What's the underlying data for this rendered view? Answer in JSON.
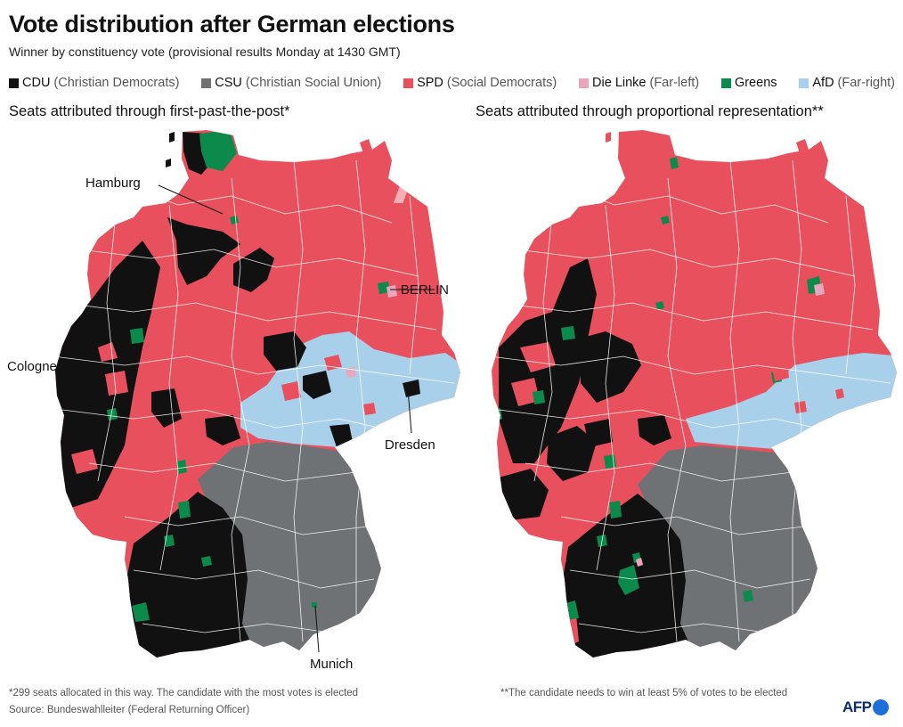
{
  "title": "Vote distribution after German elections",
  "subtitle": "Winner by constituency vote (provisional results Monday at 1430 GMT)",
  "legend": [
    {
      "party": "CDU",
      "note": "(Christian Democrats)",
      "color": "#111111"
    },
    {
      "party": "CSU",
      "note": "(Christian Social Union)",
      "color": "#6f7275"
    },
    {
      "party": "SPD",
      "note": "(Social Democrats)",
      "color": "#e9505d"
    },
    {
      "party": "Die Linke",
      "note": "(Far-left)",
      "color": "#eaa6bd"
    },
    {
      "party": "Greens",
      "note": "",
      "color": "#0c8a4b"
    },
    {
      "party": "AfD",
      "note": "(Far-right)",
      "color": "#a9d0ea"
    }
  ],
  "maps": {
    "left_title": "Seats attributed through first-past-the-post*",
    "right_title": "Seats attributed through proportional representation**"
  },
  "cities": {
    "hamburg": "Hamburg",
    "berlin": "BERLIN",
    "cologne": "Cologne",
    "dresden": "Dresden",
    "munich": "Munich"
  },
  "footnotes": {
    "left": "*299 seats allocated in this way. The candidate with the most votes is elected",
    "right": "**The candidate needs to win at least 5% of votes to be elected"
  },
  "source": "Source: Bundeswahlleiter (Federal Returning Officer)",
  "logo": "AFP",
  "watermark": "AFP"
}
